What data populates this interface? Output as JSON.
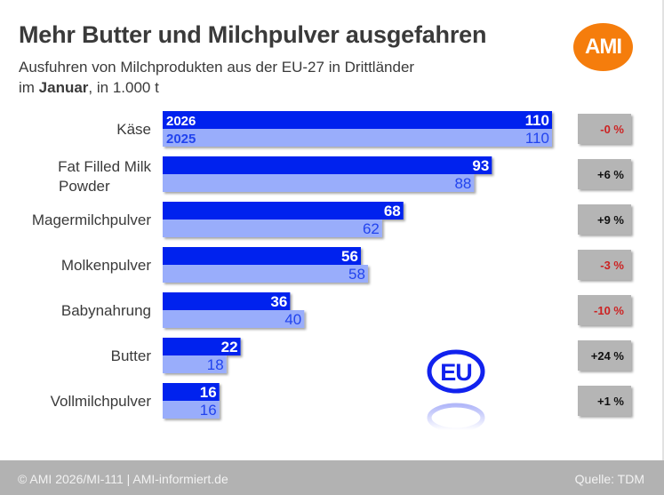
{
  "header": {
    "title": "Mehr Butter und Milchpulver ausgefahren",
    "subtitle_line1": "Ausfuhren von Milchprodukten aus der EU-27 in Drittländer",
    "subtitle_line2_prefix": "im ",
    "subtitle_line2_bold": "Januar",
    "subtitle_line2_suffix": ", in 1.000 t",
    "logo_text": "AMI"
  },
  "footer": {
    "left": "© AMI 2026/MI-111 | AMI-informiert.de",
    "right": "Quelle: TDM"
  },
  "emblem": {
    "text": "EU"
  },
  "colors": {
    "series_2026": "#0022ee",
    "series_2025": "#99adfb",
    "label_2025": "#2244ee",
    "change_negative": "#cc2222",
    "change_positive": "#111111",
    "change_box": "#b5b5b5",
    "logo": "#f57d0c"
  },
  "chart_data": {
    "type": "bar",
    "orientation": "horizontal",
    "title": "Mehr Butter und Milchpulver ausgefahren",
    "subtitle": "Ausfuhren von Milchprodukten aus der EU-27 in Drittländer im Januar, in 1.000 t",
    "xlabel": "",
    "ylabel": "",
    "unit": "1.000 t",
    "xlim": [
      0,
      110
    ],
    "grid": false,
    "legend": "inline-first-bar",
    "categories": [
      "Käse",
      "Fat Filled Milk Powder",
      "Magermilchpulver",
      "Molkenpulver",
      "Babynahrung",
      "Butter",
      "Vollmilchpulver"
    ],
    "category_lines": [
      [
        "Käse"
      ],
      [
        "Fat Filled Milk",
        "Powder"
      ],
      [
        "Magermilchpulver"
      ],
      [
        "Molkenpulver"
      ],
      [
        "Babynahrung"
      ],
      [
        "Butter"
      ],
      [
        "Vollmilchpulver"
      ]
    ],
    "series": [
      {
        "name": "2026",
        "values": [
          110,
          93,
          68,
          56,
          36,
          22,
          16
        ]
      },
      {
        "name": "2025",
        "values": [
          110,
          88,
          62,
          58,
          40,
          18,
          16
        ]
      }
    ],
    "changes": [
      "-0 %",
      "+6 %",
      "+9 %",
      "-3 %",
      "-10 %",
      "+24 %",
      "+1 %"
    ],
    "change_signs": [
      "neg",
      "pos",
      "pos",
      "neg",
      "neg",
      "pos",
      "pos"
    ]
  }
}
